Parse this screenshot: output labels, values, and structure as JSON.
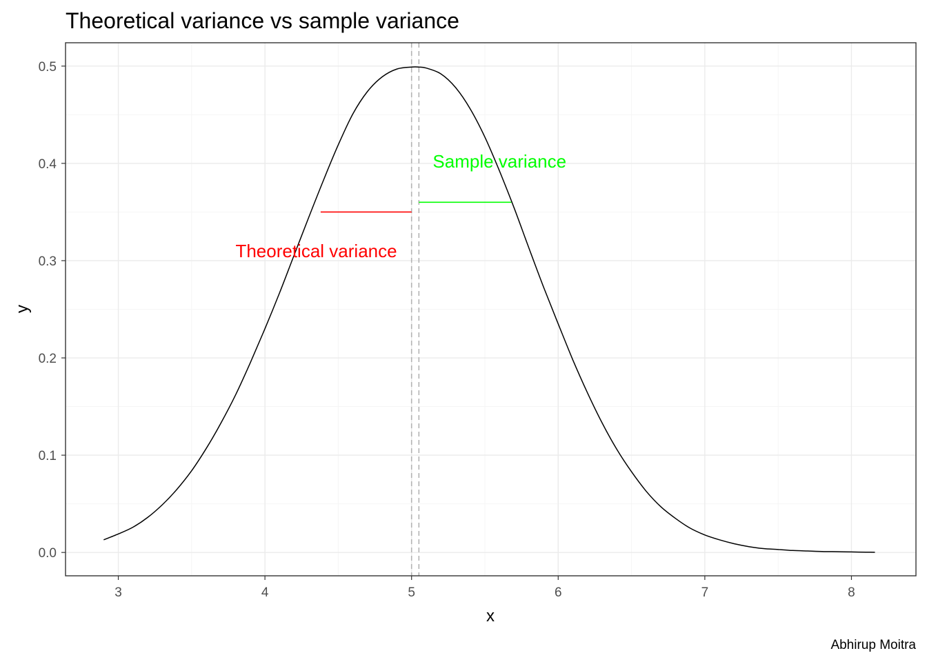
{
  "chart_data": {
    "type": "line",
    "title": "Theoretical variance vs sample variance",
    "xlabel": "x",
    "ylabel": "y",
    "caption": "Abhirup Moitra",
    "xlim": [
      2.64,
      8.44
    ],
    "ylim": [
      -0.024,
      0.524
    ],
    "x_ticks": [
      3,
      4,
      5,
      6,
      7,
      8
    ],
    "y_ticks": [
      0.0,
      0.1,
      0.2,
      0.3,
      0.4,
      0.5
    ],
    "x_tick_labels": [
      "3",
      "4",
      "5",
      "6",
      "7",
      "8"
    ],
    "y_tick_labels": [
      "0.0",
      "0.1",
      "0.2",
      "0.3",
      "0.4",
      "0.5"
    ],
    "grid": true,
    "colors": {
      "curve": "#000000",
      "theoretical": "#ff0000",
      "sample": "#00ff00",
      "vline": "#b3b3b3",
      "grid_major": "#ebebeb",
      "grid_minor": "#f5f5f5",
      "panel_border": "#333333"
    },
    "series": [
      {
        "x": [
          2.9,
          3.0,
          3.1,
          3.2,
          3.3,
          3.4,
          3.5,
          3.6,
          3.7,
          3.8,
          3.9,
          4.0,
          4.1,
          4.2,
          4.3,
          4.4,
          4.5,
          4.6,
          4.7,
          4.8,
          4.9,
          5.0,
          5.05,
          5.1,
          5.2,
          5.3,
          5.4,
          5.5,
          5.6,
          5.7,
          5.8,
          5.9,
          6.0,
          6.1,
          6.2,
          6.3,
          6.4,
          6.5,
          6.6,
          6.7,
          6.8,
          6.9,
          7.0,
          7.1,
          7.2,
          7.3,
          7.4,
          7.5,
          7.6,
          7.7,
          7.8,
          7.9,
          8.0,
          8.1,
          8.16
        ],
        "y": [
          0.013,
          0.019,
          0.026,
          0.036,
          0.049,
          0.065,
          0.084,
          0.107,
          0.133,
          0.162,
          0.195,
          0.23,
          0.267,
          0.306,
          0.345,
          0.383,
          0.419,
          0.451,
          0.474,
          0.489,
          0.497,
          0.499,
          0.499,
          0.498,
          0.492,
          0.478,
          0.456,
          0.427,
          0.392,
          0.354,
          0.313,
          0.273,
          0.235,
          0.198,
          0.164,
          0.133,
          0.106,
          0.083,
          0.063,
          0.047,
          0.035,
          0.025,
          0.018,
          0.013,
          0.009,
          0.006,
          0.004,
          0.003,
          0.002,
          0.0015,
          0.001,
          0.0008,
          0.0005,
          0.0003,
          0.0002
        ]
      }
    ],
    "vlines": [
      {
        "x": 5.0,
        "style": "dashed"
      },
      {
        "x": 5.05,
        "style": "dashed"
      }
    ],
    "segments": [
      {
        "name": "Theoretical variance",
        "x_start": 4.38,
        "x_end": 5.0,
        "y": 0.35
      },
      {
        "name": "Sample variance",
        "x_start": 5.05,
        "x_end": 5.68,
        "y": 0.36
      }
    ],
    "annotations": [
      {
        "text": "Theoretical variance",
        "x": 4.35,
        "y": 0.31,
        "color": "#ff0000"
      },
      {
        "text": "Sample variance",
        "x": 5.6,
        "y": 0.402,
        "color": "#00ff00"
      }
    ]
  }
}
